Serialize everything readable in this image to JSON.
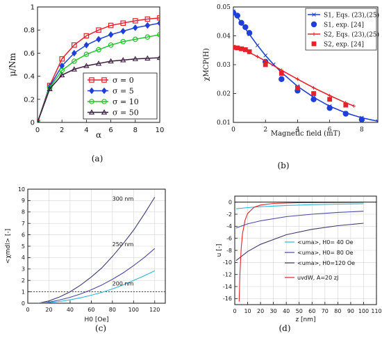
{
  "captions": [
    "(a)",
    "(b)",
    "(c)",
    "(d)"
  ],
  "chart_data": [
    {
      "type": "line",
      "panel": "a",
      "xlabel": "α",
      "ylabel": "μ/Nm",
      "xlim": [
        0,
        10
      ],
      "ylim": [
        0,
        1
      ],
      "xticks": [
        0,
        2,
        4,
        6,
        8,
        10
      ],
      "yticks": [
        0,
        0.2,
        0.4,
        0.6,
        0.8,
        1
      ],
      "legend_position": "bottom-right",
      "series": [
        {
          "name": "σ = 0",
          "color": "#e8202a",
          "marker": "square",
          "x": [
            0,
            1,
            2,
            3,
            4,
            5,
            6,
            7,
            8,
            9,
            10
          ],
          "y": [
            0,
            0.32,
            0.55,
            0.67,
            0.75,
            0.8,
            0.84,
            0.86,
            0.88,
            0.895,
            0.905
          ]
        },
        {
          "name": "σ = 5",
          "color": "#1f3fd6",
          "marker": "diamond",
          "x": [
            0,
            1,
            2,
            3,
            4,
            5,
            6,
            7,
            8,
            9,
            10
          ],
          "y": [
            0,
            0.31,
            0.49,
            0.6,
            0.67,
            0.72,
            0.76,
            0.79,
            0.82,
            0.84,
            0.86
          ]
        },
        {
          "name": "σ = 10",
          "color": "#22c22a",
          "marker": "circle",
          "x": [
            0,
            1,
            2,
            3,
            4,
            5,
            6,
            7,
            8,
            9,
            10
          ],
          "y": [
            0,
            0.3,
            0.45,
            0.53,
            0.59,
            0.63,
            0.67,
            0.7,
            0.72,
            0.74,
            0.76
          ]
        },
        {
          "name": "σ = 50",
          "color": "#3a1a3a",
          "marker": "triangle",
          "x": [
            0,
            1,
            2,
            3,
            4,
            5,
            6,
            7,
            8,
            9,
            10
          ],
          "y": [
            0,
            0.29,
            0.41,
            0.46,
            0.49,
            0.51,
            0.53,
            0.54,
            0.55,
            0.555,
            0.56
          ]
        }
      ]
    },
    {
      "type": "line",
      "panel": "b",
      "xlabel": "Magnetic field (mT)",
      "ylabel": "χMCP(H)",
      "xlim": [
        0,
        9
      ],
      "ylim": [
        0.01,
        0.05
      ],
      "xticks": [
        0,
        2,
        4,
        6,
        8
      ],
      "yticks": [
        0.01,
        0.02,
        0.03,
        0.04,
        0.05
      ],
      "legend_position": "top-right",
      "series": [
        {
          "name": "S1, Eqs. (23),(25)",
          "color": "#1f3fd6",
          "style": "line-x",
          "x": [
            0,
            0.5,
            1,
            1.5,
            2,
            2.5,
            3,
            4,
            5,
            6,
            7,
            8,
            9
          ],
          "y": [
            0.0485,
            0.0445,
            0.0405,
            0.0367,
            0.0332,
            0.0301,
            0.0273,
            0.0225,
            0.0187,
            0.0156,
            0.0133,
            0.0116,
            0.0104
          ]
        },
        {
          "name": "S1, exp. [24]",
          "color": "#1f3fd6",
          "style": "circle",
          "x": [
            0,
            0.25,
            0.5,
            0.75,
            1,
            2,
            3,
            4,
            5,
            6,
            7,
            8
          ],
          "y": [
            0.048,
            0.047,
            0.0445,
            0.043,
            0.041,
            0.031,
            0.025,
            0.021,
            0.018,
            0.015,
            0.013,
            0.011
          ]
        },
        {
          "name": "S2, Eqs. (23),(25)",
          "color": "#e8202a",
          "style": "line-plus",
          "x": [
            0,
            0.5,
            1,
            1.5,
            2,
            3,
            4,
            5,
            6,
            7,
            7.5
          ],
          "y": [
            0.0365,
            0.0355,
            0.0342,
            0.0328,
            0.0313,
            0.0281,
            0.025,
            0.022,
            0.0193,
            0.0168,
            0.0157
          ]
        },
        {
          "name": "S2, exp. [24]",
          "color": "#e8202a",
          "style": "square",
          "x": [
            0,
            0.25,
            0.5,
            0.75,
            1,
            2,
            3,
            4,
            5,
            6,
            7
          ],
          "y": [
            0.036,
            0.0358,
            0.0355,
            0.0352,
            0.0345,
            0.03,
            0.027,
            0.022,
            0.02,
            0.018,
            0.016
          ]
        }
      ]
    },
    {
      "type": "line",
      "panel": "c",
      "xlabel": "H0 [Oe]",
      "ylabel": "<χmdl> [-]",
      "xlim": [
        0,
        130
      ],
      "ylim": [
        0,
        10
      ],
      "xticks": [
        0,
        20,
        40,
        60,
        80,
        100,
        120
      ],
      "yticks": [
        0,
        1,
        2,
        3,
        4,
        5,
        6,
        7,
        8,
        9,
        10
      ],
      "reference_line_y": 1,
      "annotations": [
        "300 nm",
        "250 nm",
        "200 nm"
      ],
      "series": [
        {
          "name": "300 nm",
          "color": "#3b3b6b",
          "x": [
            10,
            20,
            30,
            40,
            50,
            60,
            70,
            80,
            90,
            100,
            110,
            120
          ],
          "y": [
            0.0,
            0.2,
            0.55,
            1.0,
            1.6,
            2.3,
            3.1,
            4.1,
            5.2,
            6.4,
            7.8,
            9.3
          ]
        },
        {
          "name": "250 nm",
          "color": "#4848a8",
          "x": [
            10,
            20,
            30,
            40,
            50,
            60,
            70,
            80,
            90,
            100,
            110,
            120
          ],
          "y": [
            0.0,
            0.1,
            0.28,
            0.52,
            0.82,
            1.18,
            1.6,
            2.1,
            2.65,
            3.3,
            4.0,
            4.8
          ]
        },
        {
          "name": "200 nm",
          "color": "#29b6d8",
          "x": [
            10,
            20,
            30,
            40,
            50,
            60,
            70,
            80,
            90,
            100,
            110,
            120
          ],
          "y": [
            0.0,
            0.05,
            0.15,
            0.3,
            0.48,
            0.7,
            0.95,
            1.25,
            1.6,
            2.0,
            2.4,
            2.85
          ]
        }
      ]
    },
    {
      "type": "line",
      "panel": "d",
      "xlabel": "z [nm]",
      "ylabel": "u [-]",
      "xlim": [
        0,
        110
      ],
      "ylim": [
        -17,
        1
      ],
      "xticks": [
        0,
        10,
        20,
        30,
        40,
        50,
        60,
        70,
        80,
        90,
        100,
        110
      ],
      "yticks": [
        0,
        -2,
        -4,
        -6,
        -8,
        -10,
        -12,
        -14,
        -16
      ],
      "legend_position": "bottom-right",
      "series": [
        {
          "name": "<uma>, H0= 40 Oe",
          "color": "#29b6d8",
          "x": [
            1,
            10,
            20,
            40,
            60,
            80,
            100
          ],
          "y": [
            -1.1,
            -0.9,
            -0.75,
            -0.55,
            -0.42,
            -0.33,
            -0.27
          ]
        },
        {
          "name": "<uma>, H0= 80 Oe",
          "color": "#4848a8",
          "x": [
            1,
            10,
            20,
            40,
            60,
            80,
            100
          ],
          "y": [
            -4.3,
            -3.6,
            -3.1,
            -2.4,
            -2.0,
            -1.7,
            -1.5
          ]
        },
        {
          "name": "<uma>, H0=120 Oe",
          "color": "#3b3b6b",
          "x": [
            1,
            10,
            20,
            40,
            60,
            80,
            100
          ],
          "y": [
            -9.7,
            -8.2,
            -7.0,
            -5.4,
            -4.5,
            -3.9,
            -3.5
          ]
        },
        {
          "name": "uvdW, A=20 zJ",
          "color": "#e8202a",
          "x": [
            3.4,
            4,
            5,
            6,
            8,
            10,
            15,
            20,
            30,
            50,
            100
          ],
          "y": [
            -16.5,
            -12,
            -7.6,
            -5.3,
            -3.0,
            -1.9,
            -0.85,
            -0.48,
            -0.21,
            -0.08,
            -0.02
          ]
        }
      ]
    }
  ]
}
